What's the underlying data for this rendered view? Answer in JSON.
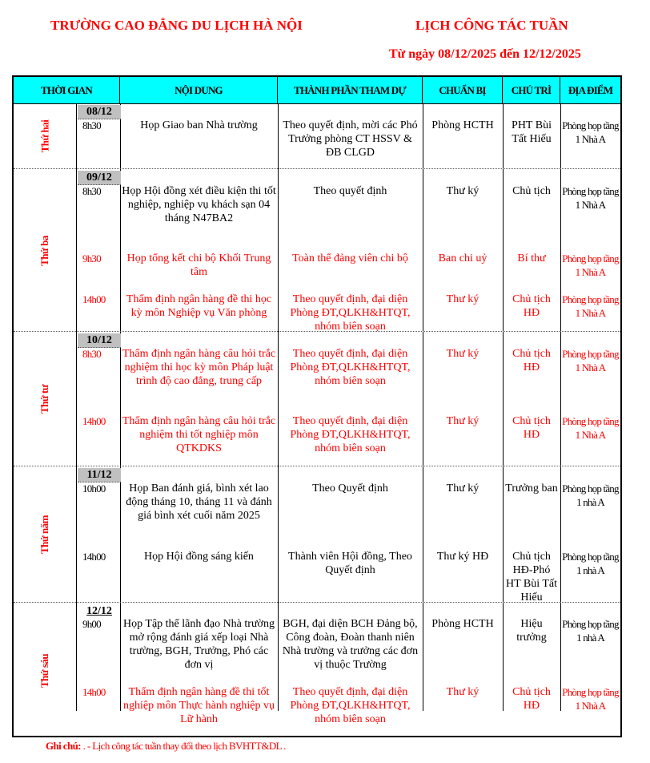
{
  "header": {
    "school": "TRƯỜNG CAO ĐẲNG DU LỊCH HÀ NỘI",
    "title": "LỊCH CÔNG TÁC TUẦN",
    "date_range": "Từ ngày 08/12/2025 đến 12/12/2025"
  },
  "colors": {
    "accent": "#ff0000",
    "header_bg": "#00ffff",
    "date_bg": "#c0c0c0"
  },
  "columns": [
    "THỜI GIAN",
    "NỘI DUNG",
    "THÀNH PHẦN THAM DỰ",
    "CHUẨN BỊ",
    "CHỦ TRÌ",
    "ĐỊA ĐIỂM"
  ],
  "days": [
    {
      "name": "Thứ hai",
      "date": "08/12",
      "entries": [
        {
          "time": "8h30",
          "content": "Họp Giao ban Nhà trường",
          "participants": "Theo quyết định, mời các Phó Trưởng phòng CT HSSV & ĐB CLGD",
          "prepare": "Phòng HCTH",
          "chair": "PHT Bùi Tất Hiếu",
          "location": "Phòng họp tầng 1 Nhà A",
          "highlight": false
        }
      ]
    },
    {
      "name": "Thứ ba",
      "date": "09/12",
      "entries": [
        {
          "time": "8h30",
          "content": "Họp Hội đồng xét điều kiện thi tốt nghiệp, nghiệp vụ khách sạn 04 tháng N47BA2",
          "participants": "Theo quyết định",
          "prepare": "Thư ký",
          "chair": "Chủ tịch",
          "location": "Phòng họp tầng 1 Nhà A",
          "highlight": false
        },
        {
          "time": "9h30",
          "content": "Họp tổng kết chi bộ Khối Trung tâm",
          "participants": "Toàn thể đảng viên chi bộ",
          "prepare": "Ban chi uỷ",
          "chair": "Bí thư",
          "location": "Phòng họp tầng 1 Nhà A",
          "highlight": true
        },
        {
          "time": "14h00",
          "content": "Thẩm định ngân hàng đề thi học kỳ môn Nghiệp vụ Văn phòng",
          "participants": "Theo quyết định, đại diện Phòng ĐT,QLKH&HTQT, nhóm biên soạn",
          "prepare": "Thư ký",
          "chair": "Chủ tịch HĐ",
          "location": "Phòng họp tầng 1 Nhà A",
          "highlight": true
        }
      ]
    },
    {
      "name": "Thứ tư",
      "date": "10/12",
      "entries": [
        {
          "time": "8h30",
          "content": "Thẩm định ngân hàng câu hỏi trắc nghiệm thi học kỳ môn Pháp luật trình độ cao đẳng, trung cấp",
          "participants": "Theo quyết định, đại diện Phòng ĐT,QLKH&HTQT, nhóm biên soạn",
          "prepare": "Thư ký",
          "chair": "Chủ tịch HĐ",
          "location": "Phòng họp tầng 1 Nhà A",
          "highlight": true
        },
        {
          "time": "14h00",
          "content": "Thẩm định ngân hàng câu hỏi trắc nghiệm thi tốt nghiệp môn QTKDKS",
          "participants": "Theo quyết định, đại diện Phòng ĐT,QLKH&HTQT, nhóm biên soạn",
          "prepare": "Thư ký",
          "chair": "Chủ tịch HĐ",
          "location": "Phòng họp tầng 1 Nhà A",
          "highlight": true
        }
      ]
    },
    {
      "name": "Thứ năm",
      "date": "11/12",
      "entries": [
        {
          "time": "10h00",
          "content": "Họp Ban đánh giá, bình xét lao động tháng 10, tháng 11 và đánh giá bình xét cuối năm 2025",
          "participants": "Theo Quyết định",
          "prepare": "Thư ký",
          "chair": "Trưởng ban",
          "location": "Phòng họp tầng 1 nhà A",
          "highlight": false
        },
        {
          "time": "14h00",
          "content": "Họp Hội đồng sáng kiến",
          "participants": "Thành viên Hội đồng, Theo Quyết định",
          "prepare": "Thư ký HĐ",
          "chair": "Chủ tịch HĐ-Phó HT Bùi Tất Hiếu",
          "location": "Phòng họp tầng 1 nhà A",
          "highlight": false
        }
      ]
    },
    {
      "name": "Thứ sáu",
      "date": "12/12",
      "entries": [
        {
          "time": "9h00",
          "content": "Họp Tập thể lãnh đạo Nhà trường mở rộng đánh giá xếp loại Nhà trường, BGH, Trưởng, Phó các đơn vị",
          "participants": "BGH, đại diện BCH Đảng bộ, Công đoàn, Đoàn thanh niên Nhà trường và trưởng các đơn vị thuộc Trường",
          "prepare": "Phòng HCTH",
          "chair": "Hiệu trưởng",
          "location": "Phòng họp tầng 1 nhà A",
          "highlight": false
        },
        {
          "time": "14h00",
          "content": "Thẩm định ngân hàng đề thi tốt nghiệp môn Thực hành nghiệp vụ Lữ hành",
          "participants": "Theo quyết định, đại diện Phòng ĐT,QLKH&HTQT, nhóm biên soạn",
          "prepare": "Thư ký",
          "chair": "Chủ tịch HĐ",
          "location": "Phòng họp tầng 1 Nhà A",
          "highlight": true
        }
      ]
    }
  ],
  "note": {
    "label": "Ghi chú:",
    "text": ". - Lịch công tác tuần thay đổi theo lịch BVHTT&DL ."
  }
}
